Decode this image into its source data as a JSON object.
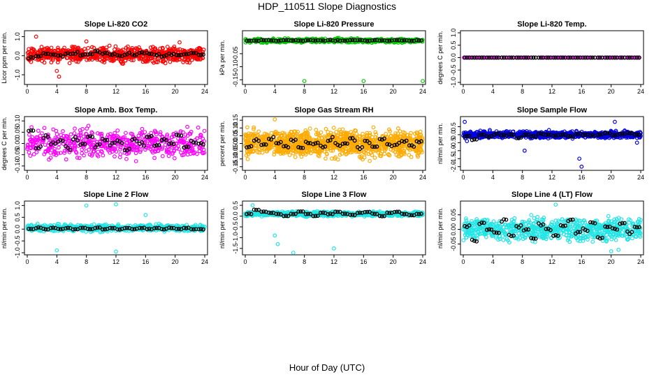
{
  "figure": {
    "title": "HDP_110511  Slope Diagnostics",
    "xlabel": "Hour of Day (UTC)"
  },
  "chart_data": [
    {
      "type": "scatter",
      "title": "Slope Li-820 CO2",
      "ylabel": "Licor ppm per min.",
      "xlim": [
        0,
        24
      ],
      "ylim": [
        -1.4,
        1.2
      ],
      "xticks": [
        0,
        4,
        8,
        12,
        16,
        20,
        24
      ],
      "yticks": [
        -1.0,
        0.0,
        1.0
      ],
      "ytick_labels": [
        "-1.0",
        "0.0",
        "1.0"
      ],
      "grid": false,
      "color": "#ff0000",
      "points_per_hour": 30,
      "spread": 0.55,
      "center": 0.05,
      "outliers": [
        [
          1.2,
          1.0
        ],
        [
          4.0,
          -0.8
        ],
        [
          8.0,
          0.75
        ],
        [
          20.6,
          0.7
        ],
        [
          4.3,
          -1.1
        ]
      ],
      "hourly_means": [
        -0.1,
        -0.05,
        0.1,
        0.05,
        0.0,
        0.1,
        0.15,
        0.05,
        0.1,
        0.2,
        0.1,
        0.05,
        0.0,
        0.1,
        0.05,
        0.15,
        0.1,
        0.05,
        0.0,
        0.1,
        0.05,
        0.1,
        0.15,
        0.05
      ]
    },
    {
      "type": "scatter",
      "title": "Slope Li-820 Pressure",
      "ylabel": "kPa per min.",
      "xlim": [
        0,
        24
      ],
      "ylim": [
        -0.16,
        0.03
      ],
      "xticks": [
        0,
        4,
        8,
        12,
        16,
        20,
        24
      ],
      "yticks": [
        -0.15,
        -0.1,
        -0.05
      ],
      "ytick_labels": [
        "-0.15",
        "-0.10",
        "-0.05"
      ],
      "grid": false,
      "color": "#00cc00",
      "points_per_hour": 20,
      "spread": 0.012,
      "center": 0.0,
      "outliers": [
        [
          8.0,
          -0.155
        ],
        [
          16.0,
          -0.155
        ],
        [
          24.0,
          -0.155
        ]
      ],
      "hourly_means": [
        0.0,
        0.0,
        0.002,
        0.001,
        0.0,
        0.002,
        0.001,
        0.0,
        0.002,
        0.001,
        0.0,
        0.002,
        0.001,
        0.0,
        0.002,
        0.001,
        0.0,
        0.002,
        0.001,
        0.0,
        0.002,
        0.001,
        0.0,
        0.001
      ]
    },
    {
      "type": "scatter",
      "title": "Slope Li-820 Temp.",
      "ylabel": "degrees C per min.",
      "xlim": [
        0,
        24
      ],
      "ylim": [
        -1.0,
        1.0
      ],
      "xticks": [
        0,
        4,
        8,
        12,
        16,
        20,
        24
      ],
      "yticks": [
        -1.0,
        -0.5,
        0.0,
        0.5,
        1.0
      ],
      "ytick_labels": [
        "-1.0",
        "-0.5",
        "0.0",
        "0.5",
        "1.0"
      ],
      "grid": false,
      "color": "#ff00ff",
      "points_per_hour": 8,
      "spread": 0.0,
      "center": 0.0,
      "outliers": [],
      "hourly_means": [
        0,
        0,
        0,
        0,
        0,
        0,
        0,
        0,
        0,
        0,
        0,
        0,
        0,
        0,
        0,
        0,
        0,
        0,
        0,
        0,
        0,
        0,
        0,
        0
      ]
    },
    {
      "type": "scatter",
      "title": "Slope Amb. Box Temp.",
      "ylabel": "degrees C per min.",
      "xlim": [
        0,
        24
      ],
      "ylim": [
        -0.11,
        0.11
      ],
      "xticks": [
        0,
        4,
        8,
        12,
        16,
        20,
        24
      ],
      "yticks": [
        -0.1,
        -0.05,
        0.0,
        0.05,
        0.1
      ],
      "ytick_labels": [
        "-0.10",
        "-0.05",
        "0.00",
        "0.05",
        "0.10"
      ],
      "grid": false,
      "color": "#ff00ff",
      "points_per_hour": 22,
      "spread": 0.09,
      "center": 0.0,
      "outliers": [],
      "hourly_means": [
        0.06,
        -0.02,
        0.03,
        0.0,
        0.01,
        -0.02,
        0.02,
        0.0,
        0.03,
        -0.01,
        0.02,
        0.0,
        0.01,
        -0.03,
        0.02,
        0.0,
        0.03,
        -0.01,
        0.02,
        0.0,
        0.04,
        -0.02,
        0.01,
        0.0
      ]
    },
    {
      "type": "scatter",
      "title": "Slope Gas Stream RH",
      "ylabel": "percent per min.",
      "xlim": [
        0,
        24
      ],
      "ylim": [
        -0.16,
        0.16
      ],
      "xticks": [
        0,
        4,
        8,
        12,
        16,
        20,
        24
      ],
      "yticks": [
        -0.15,
        -0.1,
        -0.05,
        0.0,
        0.05,
        0.1,
        0.15
      ],
      "ytick_labels": [
        "-0.15",
        "-0.10",
        "-0.05",
        "0.00",
        "0.05",
        "0.10",
        "0.15"
      ],
      "grid": false,
      "color": "#ffaa00",
      "points_per_hour": 45,
      "spread": 0.12,
      "center": 0.0,
      "outliers": [
        [
          4.0,
          0.155
        ]
      ],
      "hourly_means": [
        -0.02,
        0.02,
        -0.01,
        0.03,
        0.0,
        -0.02,
        0.02,
        -0.03,
        0.01,
        0.0,
        -0.02,
        0.03,
        -0.01,
        0.0,
        0.02,
        -0.03,
        0.01,
        -0.02,
        0.03,
        0.0,
        -0.01,
        0.02,
        -0.02,
        0.01
      ]
    },
    {
      "type": "scatter",
      "title": "Slope Sample Flow",
      "ylabel": "nl/min per min.",
      "xlim": [
        0,
        24
      ],
      "ylim": [
        -2.1,
        1.0
      ],
      "xticks": [
        0,
        4,
        8,
        12,
        16,
        20,
        24
      ],
      "yticks": [
        -2.0,
        -1.5,
        -1.0,
        -0.5,
        0.0,
        0.5
      ],
      "ytick_labels": [
        "-2.0",
        "-1.5",
        "-1.0",
        "-0.5",
        "0.0",
        "0.5"
      ],
      "grid": false,
      "color": "#0000dd",
      "points_per_hour": 35,
      "spread": 0.3,
      "center": 0.0,
      "outliers": [
        [
          0.2,
          0.8
        ],
        [
          0.5,
          -0.4
        ],
        [
          16.0,
          -2.0
        ],
        [
          15.7,
          -1.5
        ],
        [
          8.3,
          -1.0
        ],
        [
          20.5,
          0.8
        ],
        [
          23.5,
          -0.5
        ]
      ],
      "hourly_means": [
        -0.1,
        -0.3,
        0.0,
        -0.1,
        0.05,
        -0.05,
        0.0,
        -0.2,
        0.0,
        -0.1,
        0.05,
        0.0,
        -0.05,
        0.0,
        -0.1,
        0.05,
        0.0,
        -0.05,
        0.0,
        0.1,
        -0.05,
        0.05,
        0.1,
        0.0
      ]
    },
    {
      "type": "scatter",
      "title": "Slope Line 2 Flow",
      "ylabel": "nl/min per min.",
      "xlim": [
        0,
        24
      ],
      "ylim": [
        -1.0,
        1.1
      ],
      "xticks": [
        0,
        4,
        8,
        12,
        16,
        20,
        24
      ],
      "yticks": [
        -1.0,
        -0.5,
        0.0,
        0.5,
        1.0
      ],
      "ytick_labels": [
        "-1.0",
        "-0.5",
        "0.0",
        "0.5",
        "1.0"
      ],
      "grid": false,
      "color": "#22e5e5",
      "points_per_hour": 25,
      "spread": 0.2,
      "center": 0.05,
      "outliers": [
        [
          8.0,
          1.0
        ],
        [
          12.0,
          1.05
        ],
        [
          4.0,
          -0.9
        ],
        [
          12.0,
          -0.95
        ],
        [
          16.0,
          0.6
        ]
      ],
      "hourly_means": [
        0.0,
        0.05,
        0.0,
        0.05,
        0.0,
        0.05,
        0.0,
        0.05,
        0.0,
        0.05,
        0.0,
        0.05,
        0.0,
        0.05,
        0.0,
        0.05,
        0.0,
        0.05,
        0.0,
        0.05,
        0.0,
        0.05,
        0.0,
        0.0
      ]
    },
    {
      "type": "scatter",
      "title": "Slope Line 3 Flow",
      "ylabel": "nl/min per min.",
      "xlim": [
        0,
        24
      ],
      "ylim": [
        -1.7,
        0.6
      ],
      "xticks": [
        0,
        4,
        8,
        12,
        16,
        20,
        24
      ],
      "yticks": [
        -1.5,
        -1.0,
        -0.5,
        0.0,
        0.5
      ],
      "ytick_labels": [
        "-1.5",
        "-1.0",
        "-0.5",
        "0.0",
        "0.5"
      ],
      "grid": false,
      "color": "#22e5e5",
      "points_per_hour": 30,
      "spread": 0.15,
      "center": 0.1,
      "outliers": [
        [
          4.0,
          -0.9
        ],
        [
          6.5,
          -1.7
        ],
        [
          12.0,
          -1.5
        ],
        [
          4.4,
          -1.3
        ],
        [
          1.0,
          0.5
        ]
      ],
      "hourly_means": [
        0.1,
        0.3,
        0.2,
        0.15,
        0.1,
        0.0,
        0.1,
        0.2,
        0.1,
        0.0,
        0.15,
        0.1,
        0.2,
        0.1,
        0.05,
        0.15,
        0.2,
        0.1,
        0.0,
        0.15,
        0.2,
        0.1,
        0.05,
        0.1
      ]
    },
    {
      "type": "scatter",
      "title": "Slope Line 4 (LT) Flow",
      "ylabel": "nl/min per min.",
      "xlim": [
        0,
        24
      ],
      "ylim": [
        -0.08,
        0.09
      ],
      "xticks": [
        0,
        4,
        8,
        12,
        16,
        20,
        24
      ],
      "yticks": [
        -0.05,
        0.0,
        0.05
      ],
      "ytick_labels": [
        "-0.05",
        "0.00",
        "0.05"
      ],
      "grid": false,
      "color": "#22e5e5",
      "points_per_hour": 30,
      "spread": 0.055,
      "center": 0.0,
      "outliers": [
        [
          12.5,
          0.085
        ],
        [
          20.0,
          -0.075
        ],
        [
          21.0,
          -0.07
        ]
      ],
      "hourly_means": [
        0.01,
        -0.04,
        0.02,
        0.0,
        -0.01,
        0.03,
        -0.02,
        0.01,
        0.0,
        -0.03,
        0.02,
        0.0,
        -0.02,
        0.01,
        0.03,
        -0.01,
        0.0,
        0.02,
        -0.03,
        0.01,
        0.0,
        0.02,
        -0.01,
        0.01
      ]
    }
  ]
}
